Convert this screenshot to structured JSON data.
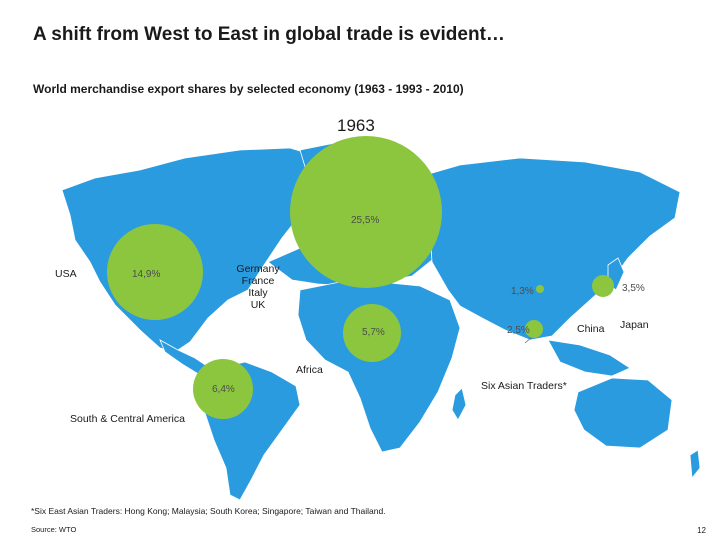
{
  "header": {
    "title": "A shift from West to East in global trade is evident…",
    "subtitle": "World merchandise export shares by selected economy (1963 - 1993 - 2010)",
    "year": "1963"
  },
  "colors": {
    "land": "#2b9be0",
    "ocean": "#ffffff",
    "bubble": "#8cc63f",
    "leader": "#666666"
  },
  "regions": {
    "usa": {
      "label": "USA",
      "share": "14,9%"
    },
    "europe": {
      "label": "Germany\nFrance\nItaly\nUK",
      "share": "25,5%"
    },
    "africa": {
      "label": "Africa",
      "share": "5,7%"
    },
    "south_america": {
      "label": "South & Central America",
      "share": "6,4%"
    },
    "china": {
      "label": "China",
      "share": "1,3%"
    },
    "japan": {
      "label": "Japan",
      "share": "3,5%"
    },
    "six_asian": {
      "label": "Six Asian Traders*",
      "share": "2,5%"
    }
  },
  "footer": {
    "footnote": "*Six East Asian Traders: Hong Kong; Malaysia; South Korea; Singapore; Taiwan and Thailand.",
    "source": "Source: WTO",
    "page_number": "12"
  }
}
